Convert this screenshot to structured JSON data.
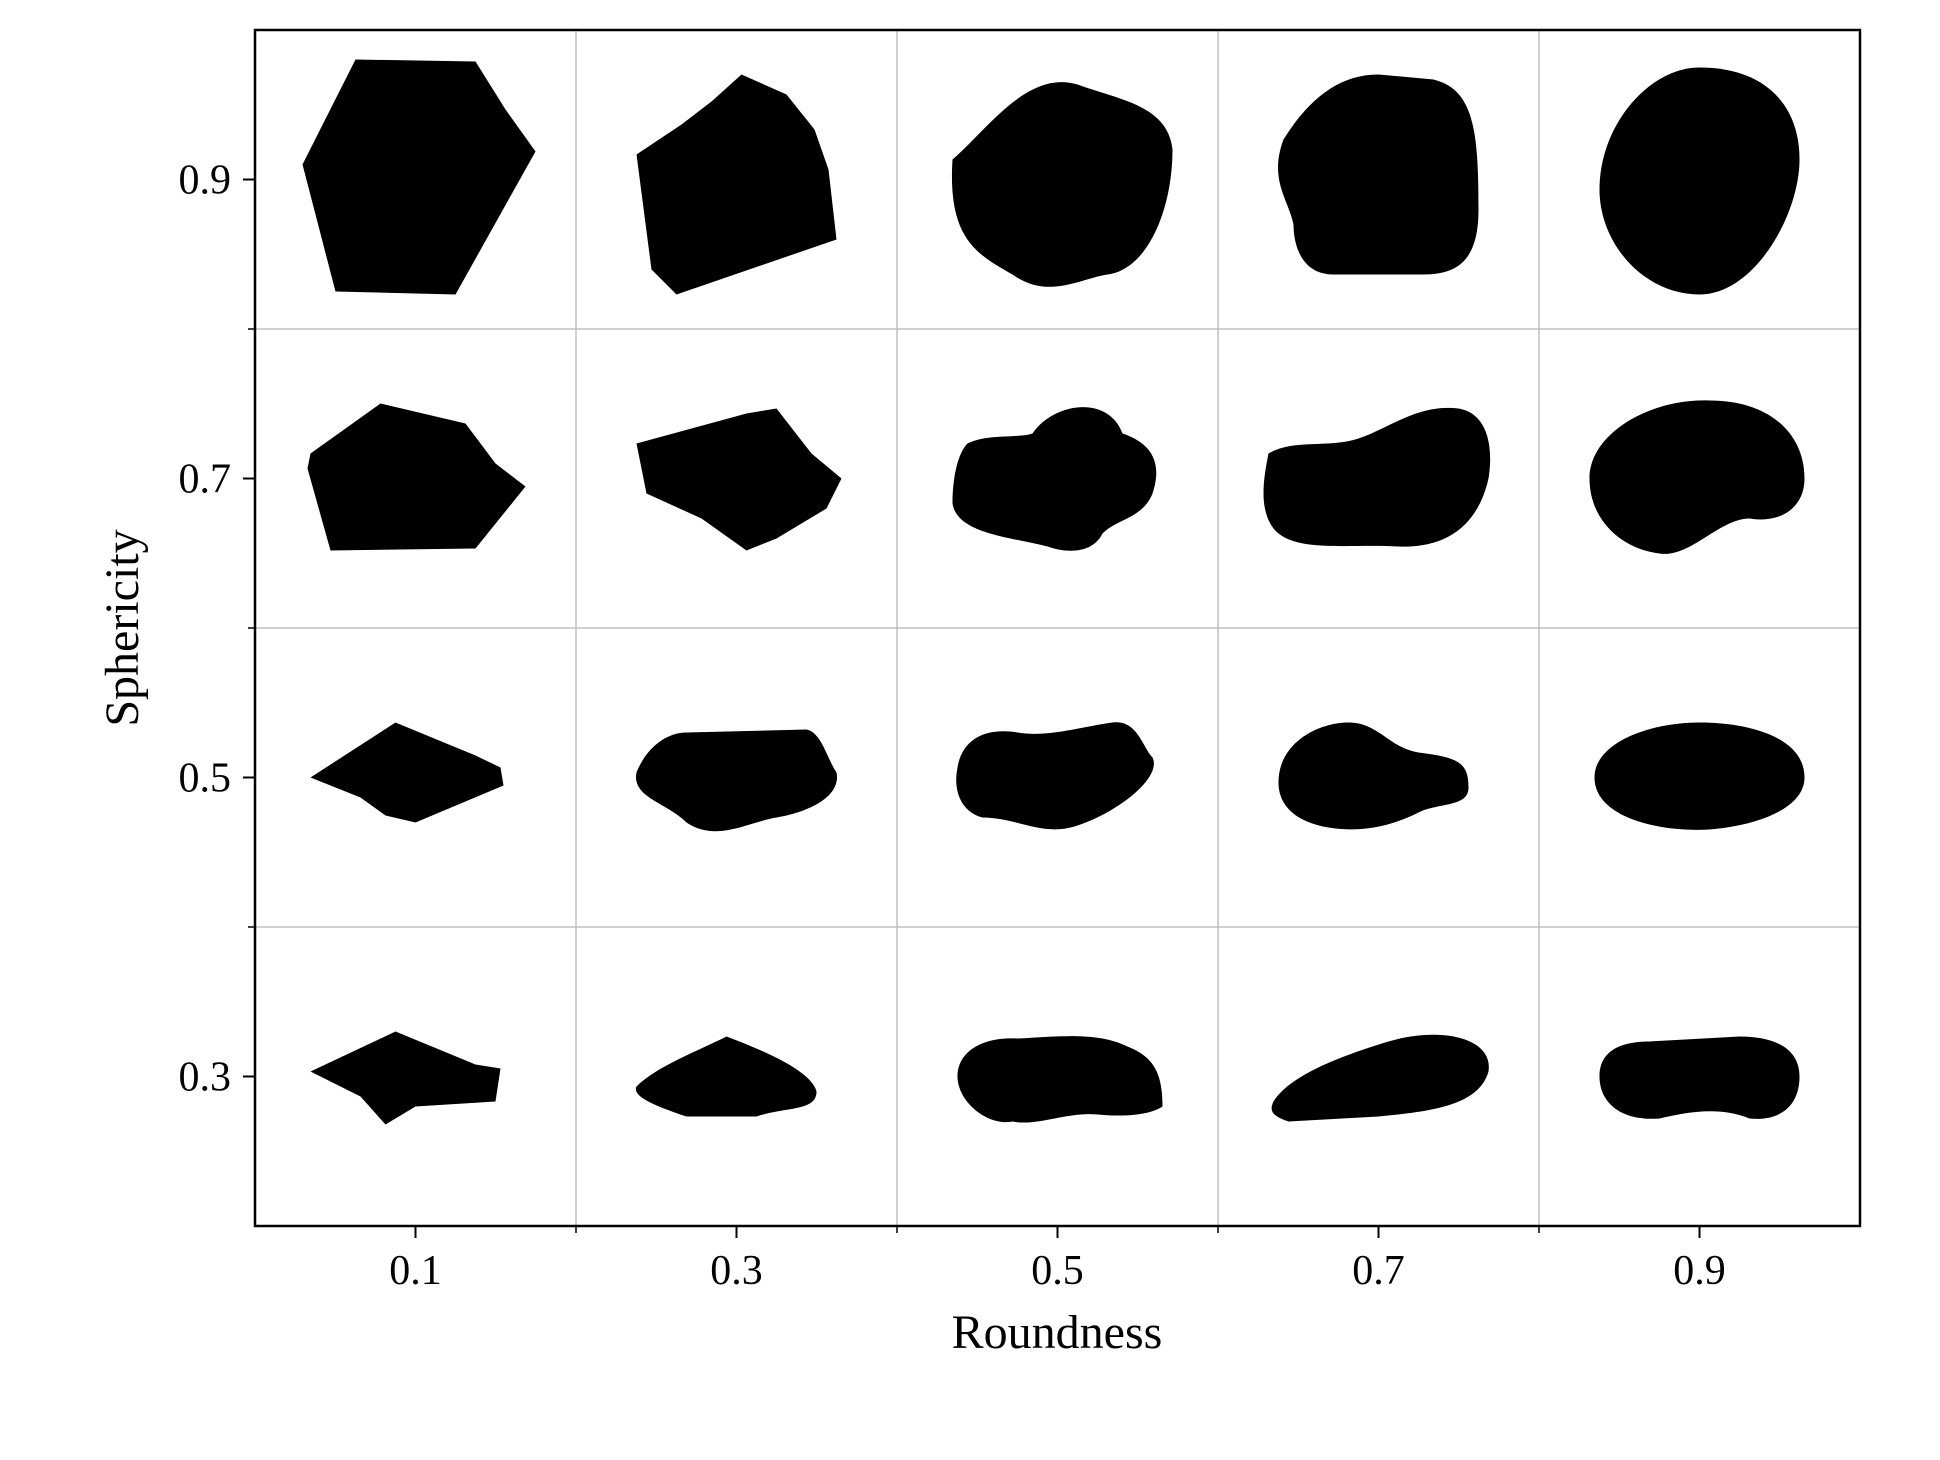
{
  "chart_data": {
    "type": "scatter",
    "title": "",
    "xlabel": "Roundness",
    "ylabel": "Sphericity",
    "x_ticks": [
      0.1,
      0.3,
      0.5,
      0.7,
      0.9
    ],
    "y_ticks": [
      0.9,
      0.7,
      0.5,
      0.3
    ],
    "xlim": [
      0.0,
      1.0
    ],
    "ylim": [
      0.2,
      1.0
    ],
    "grid": true,
    "grid_lines_x": [
      0.2,
      0.4,
      0.6,
      0.8
    ],
    "grid_lines_y": [
      0.4,
      0.6,
      0.8
    ],
    "marker_color": "#000000",
    "grid_color": "#c0c0c0",
    "points": [
      {
        "roundness": 0.1,
        "sphericity": 0.9,
        "shape": "angular-hexagon"
      },
      {
        "roundness": 0.3,
        "sphericity": 0.9,
        "shape": "angular-polygon"
      },
      {
        "roundness": 0.5,
        "sphericity": 0.9,
        "shape": "subrounded-blob"
      },
      {
        "roundness": 0.7,
        "sphericity": 0.9,
        "shape": "rounded-blocky"
      },
      {
        "roundness": 0.9,
        "sphericity": 0.9,
        "shape": "rounded-oval"
      },
      {
        "roundness": 0.1,
        "sphericity": 0.7,
        "shape": "angular-pentagon"
      },
      {
        "roundness": 0.3,
        "sphericity": 0.7,
        "shape": "angular-irregular"
      },
      {
        "roundness": 0.5,
        "sphericity": 0.7,
        "shape": "subrounded-irregular"
      },
      {
        "roundness": 0.7,
        "sphericity": 0.7,
        "shape": "rounded-elongated"
      },
      {
        "roundness": 0.9,
        "sphericity": 0.7,
        "shape": "rounded-kidney"
      },
      {
        "roundness": 0.1,
        "sphericity": 0.5,
        "shape": "angular-flat"
      },
      {
        "roundness": 0.3,
        "sphericity": 0.5,
        "shape": "subangular-flat"
      },
      {
        "roundness": 0.5,
        "sphericity": 0.5,
        "shape": "subrounded-flat"
      },
      {
        "roundness": 0.7,
        "sphericity": 0.5,
        "shape": "rounded-pear"
      },
      {
        "roundness": 0.9,
        "sphericity": 0.5,
        "shape": "rounded-ellipse"
      },
      {
        "roundness": 0.1,
        "sphericity": 0.3,
        "shape": "angular-sliver"
      },
      {
        "roundness": 0.3,
        "sphericity": 0.3,
        "shape": "subangular-sliver"
      },
      {
        "roundness": 0.5,
        "sphericity": 0.3,
        "shape": "subrounded-sliver"
      },
      {
        "roundness": 0.7,
        "sphericity": 0.3,
        "shape": "rounded-sliver"
      },
      {
        "roundness": 0.9,
        "sphericity": 0.3,
        "shape": "rounded-capsule"
      }
    ]
  }
}
